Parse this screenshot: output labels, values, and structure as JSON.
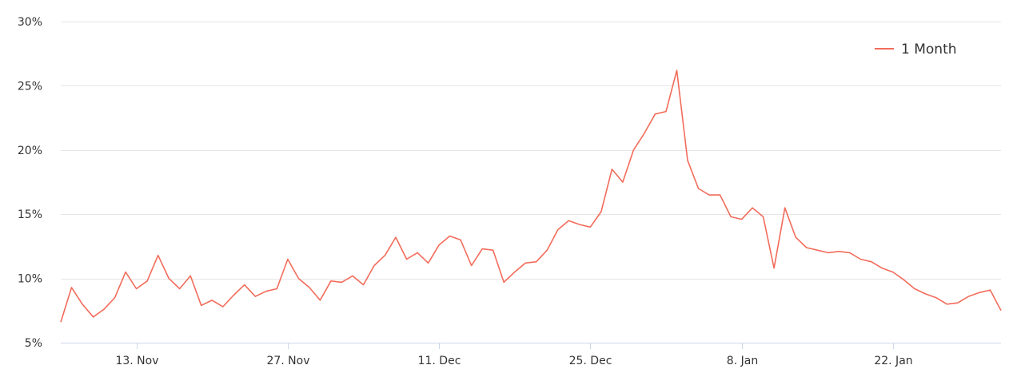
{
  "colors": {
    "series": "#f26c5b",
    "grid": "#e6e6e6",
    "axis": "#ccd6eb",
    "tick_text": "#333333"
  },
  "chart_data": {
    "type": "line",
    "title": "",
    "xlabel": "",
    "ylabel": "",
    "grid": true,
    "legend_position": "top-right",
    "x_range": [
      "2023-11-06",
      "2024-02-01"
    ],
    "ylim": [
      5,
      30
    ],
    "yticks": [
      5,
      10,
      15,
      20,
      25,
      30
    ],
    "ytick_labels": [
      "5%",
      "10%",
      "15%",
      "20%",
      "25%",
      "30%"
    ],
    "xticks": [
      "2023-11-13",
      "2023-11-27",
      "2023-12-11",
      "2023-12-25",
      "2024-01-08",
      "2024-01-22"
    ],
    "xtick_labels": [
      "13. Nov",
      "27. Nov",
      "11. Dec",
      "25. Dec",
      "8. Jan",
      "22. Jan"
    ],
    "series": [
      {
        "name": "1 Month",
        "x": [
          "2023-11-06",
          "2023-11-07",
          "2023-11-08",
          "2023-11-09",
          "2023-11-10",
          "2023-11-11",
          "2023-11-12",
          "2023-11-13",
          "2023-11-14",
          "2023-11-15",
          "2023-11-16",
          "2023-11-17",
          "2023-11-18",
          "2023-11-19",
          "2023-11-20",
          "2023-11-21",
          "2023-11-22",
          "2023-11-23",
          "2023-11-24",
          "2023-11-25",
          "2023-11-26",
          "2023-11-27",
          "2023-11-28",
          "2023-11-29",
          "2023-11-30",
          "2023-12-01",
          "2023-12-02",
          "2023-12-03",
          "2023-12-04",
          "2023-12-05",
          "2023-12-06",
          "2023-12-07",
          "2023-12-08",
          "2023-12-09",
          "2023-12-10",
          "2023-12-11",
          "2023-12-12",
          "2023-12-13",
          "2023-12-14",
          "2023-12-15",
          "2023-12-16",
          "2023-12-17",
          "2023-12-18",
          "2023-12-19",
          "2023-12-20",
          "2023-12-21",
          "2023-12-22",
          "2023-12-23",
          "2023-12-24",
          "2023-12-25",
          "2023-12-26",
          "2023-12-27",
          "2023-12-28",
          "2023-12-29",
          "2023-12-30",
          "2023-12-31",
          "2024-01-01",
          "2024-01-02",
          "2024-01-03",
          "2024-01-04",
          "2024-01-05",
          "2024-01-06",
          "2024-01-07",
          "2024-01-08",
          "2024-01-09",
          "2024-01-10",
          "2024-01-11",
          "2024-01-12",
          "2024-01-13",
          "2024-01-14",
          "2024-01-15",
          "2024-01-16",
          "2024-01-17",
          "2024-01-18",
          "2024-01-19",
          "2024-01-20",
          "2024-01-21",
          "2024-01-22",
          "2024-01-23",
          "2024-01-24",
          "2024-01-25",
          "2024-01-26",
          "2024-01-27",
          "2024-01-28",
          "2024-01-29",
          "2024-01-30",
          "2024-01-31",
          "2024-02-01"
        ],
        "values": [
          6.6,
          9.3,
          8.0,
          7.0,
          7.6,
          8.5,
          10.5,
          9.2,
          9.8,
          11.8,
          10.0,
          9.2,
          10.2,
          7.9,
          8.3,
          7.8,
          8.7,
          9.5,
          8.6,
          9.0,
          9.2,
          11.5,
          10.0,
          9.3,
          8.3,
          9.8,
          9.7,
          10.2,
          9.5,
          11.0,
          11.8,
          13.2,
          11.5,
          12.0,
          11.2,
          12.6,
          13.3,
          13.0,
          11.0,
          12.3,
          12.2,
          9.7,
          10.5,
          11.2,
          11.3,
          12.2,
          13.8,
          14.5,
          14.2,
          14.0,
          15.2,
          18.5,
          17.5,
          20.0,
          21.3,
          22.8,
          23.0,
          26.2,
          19.2,
          17.0,
          16.5,
          16.5,
          14.8,
          14.6,
          15.5,
          14.8,
          10.8,
          15.5,
          13.2,
          12.4,
          12.2,
          12.0,
          12.1,
          12.0,
          11.5,
          11.3,
          10.8,
          10.5,
          9.9,
          9.2,
          8.8,
          8.5,
          8.0,
          8.1,
          8.6,
          8.9,
          9.1,
          7.5
        ]
      }
    ]
  }
}
